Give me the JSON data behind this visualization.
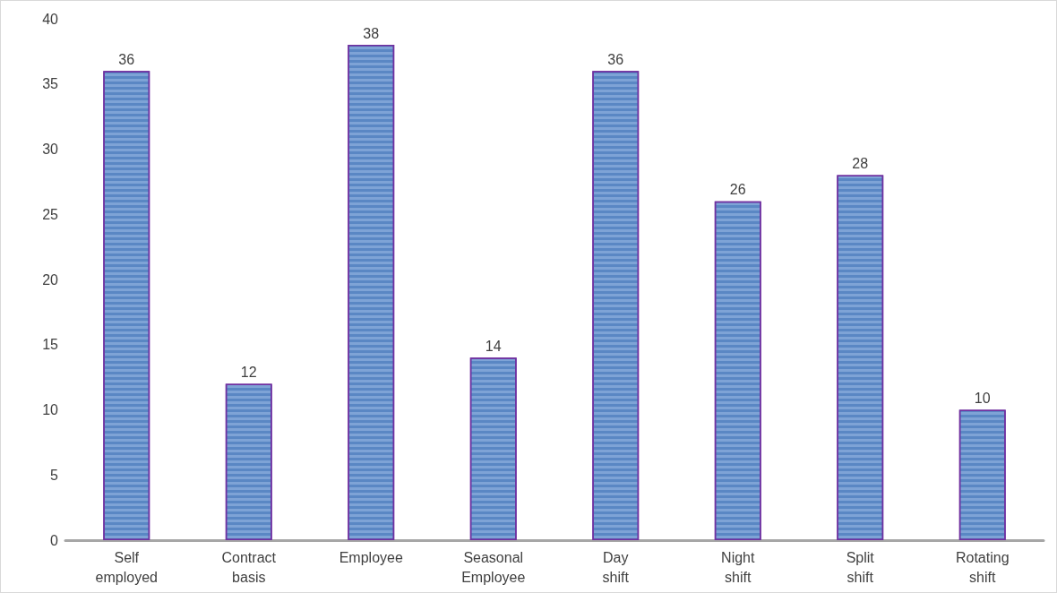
{
  "chart_data": {
    "type": "bar",
    "categories": [
      "Self employed",
      "Contract basis",
      "Employee",
      "Seasonal Employee",
      "Day shift",
      "Night shift",
      "Split shift",
      "Rotating shift"
    ],
    "values": [
      36,
      12,
      38,
      14,
      36,
      26,
      28,
      10
    ],
    "color": "#7ea3d6",
    "ylim": [
      0,
      40
    ],
    "yticks": [
      0,
      5,
      10,
      15,
      20,
      25,
      30,
      35,
      40
    ],
    "grid": false,
    "data_labels": true
  }
}
